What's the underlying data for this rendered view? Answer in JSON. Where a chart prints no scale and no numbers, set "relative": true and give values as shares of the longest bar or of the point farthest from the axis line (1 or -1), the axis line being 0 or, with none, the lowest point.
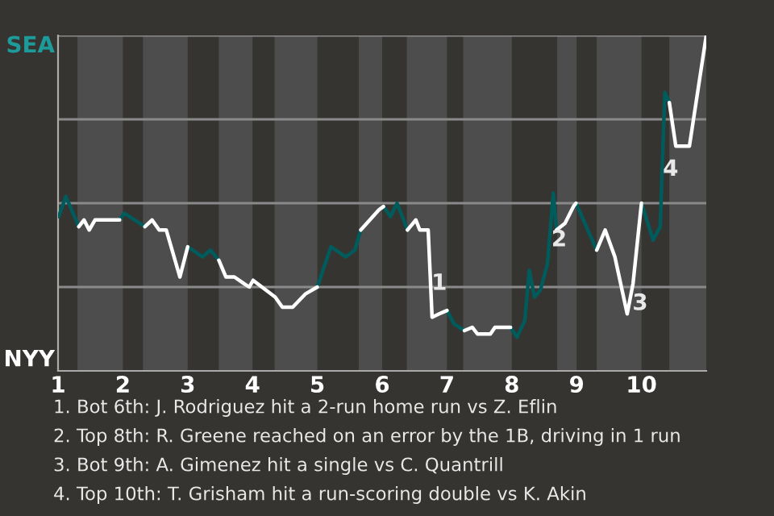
{
  "chart_data": {
    "type": "line",
    "relative": true,
    "x": [
      1.01,
      1.12,
      1.32,
      1.4,
      1.48,
      1.57,
      1.95,
      2.02,
      2.34,
      2.45,
      2.56,
      2.67,
      2.88,
      3.0,
      3.23,
      3.35,
      3.48,
      3.59,
      3.72,
      3.87,
      3.95,
      4.01,
      4.35,
      4.46,
      4.62,
      4.82,
      5.0,
      5.21,
      5.44,
      5.58,
      5.67,
      5.95,
      6.02,
      6.13,
      6.23,
      6.39,
      6.52,
      6.58,
      6.71,
      6.77,
      6.88,
      7.0,
      7.11,
      7.27,
      7.39,
      7.47,
      7.67,
      7.74,
      7.98,
      8.08,
      8.2,
      8.27,
      8.35,
      8.44,
      8.55,
      8.64,
      8.69,
      8.82,
      8.95,
      8.99,
      9.15,
      9.31,
      9.44,
      9.59,
      9.78,
      9.87,
      10.0,
      10.18,
      10.29,
      10.36,
      10.43,
      10.53,
      10.74,
      11.0
    ],
    "series": [
      {
        "color": "#005c5c",
        "values": [
          0.46,
          0.52,
          0.43,
          null,
          null,
          null,
          0.45,
          0.47,
          0.43,
          null,
          null,
          null,
          null,
          0.37,
          0.34,
          0.36,
          0.33,
          null,
          null,
          null,
          null,
          null,
          null,
          null,
          null,
          null,
          0.25,
          0.37,
          0.34,
          0.36,
          0.42,
          null,
          0.49,
          0.46,
          0.5,
          0.42,
          null,
          null,
          null,
          null,
          null,
          0.18,
          0.14,
          0.12,
          null,
          null,
          null,
          null,
          0.13,
          0.1,
          0.15,
          0.3,
          0.22,
          0.24,
          0.32,
          0.53,
          0.42,
          null,
          null,
          0.5,
          0.43,
          0.36,
          null,
          null,
          null,
          null,
          0.5,
          0.39,
          0.43,
          0.83,
          0.8,
          null,
          null,
          null
        ]
      },
      {
        "color": "#ffffff",
        "values": [
          null,
          null,
          0.43,
          0.45,
          0.42,
          0.45,
          0.45,
          null,
          0.43,
          0.45,
          0.42,
          0.42,
          0.28,
          0.37,
          null,
          null,
          0.33,
          0.28,
          0.28,
          0.26,
          0.25,
          0.27,
          0.22,
          0.19,
          0.19,
          0.23,
          0.25,
          null,
          null,
          null,
          0.42,
          0.48,
          0.49,
          null,
          null,
          0.42,
          0.45,
          0.42,
          0.42,
          0.16,
          0.17,
          0.18,
          null,
          0.12,
          0.13,
          0.11,
          0.11,
          0.13,
          0.13,
          null,
          null,
          null,
          null,
          null,
          null,
          null,
          0.42,
          0.44,
          0.49,
          0.5,
          null,
          0.36,
          0.42,
          0.34,
          0.17,
          0.26,
          0.5,
          null,
          null,
          null,
          0.8,
          0.67,
          0.67,
          1
        ]
      }
    ],
    "xlim": [
      1,
      11
    ],
    "xticks": [
      1,
      2,
      3,
      4,
      5,
      6,
      7,
      8,
      9,
      10
    ],
    "ref_lines": [
      {
        "axis": "y",
        "value": 0.25,
        "color": "#8a8a8a"
      },
      {
        "axis": "y",
        "value": 0.5,
        "color": "#8a8a8a"
      },
      {
        "axis": "y",
        "value": 0.75,
        "color": "#8a8a8a"
      },
      {
        "axis": "y",
        "value": 1,
        "color": "#8a8a8a"
      }
    ],
    "bands": [
      {
        "axis": "x",
        "from": 1.3,
        "to": 2.0,
        "color": "#4d4d4d"
      },
      {
        "axis": "x",
        "from": 2.31,
        "to": 3.0,
        "color": "#4d4d4d"
      },
      {
        "axis": "x",
        "from": 3.48,
        "to": 4.0,
        "color": "#4d4d4d"
      },
      {
        "axis": "x",
        "from": 4.34,
        "to": 5.0,
        "color": "#4d4d4d"
      },
      {
        "axis": "x",
        "from": 5.64,
        "to": 6.0,
        "color": "#4d4d4d"
      },
      {
        "axis": "x",
        "from": 6.38,
        "to": 7.0,
        "color": "#4d4d4d"
      },
      {
        "axis": "x",
        "from": 7.25,
        "to": 8.0,
        "color": "#4d4d4d"
      },
      {
        "axis": "x",
        "from": 8.7,
        "to": 9.0,
        "color": "#4d4d4d"
      },
      {
        "axis": "x",
        "from": 9.31,
        "to": 10.0,
        "color": "#4d4d4d"
      },
      {
        "axis": "x",
        "from": 10.43,
        "to": 11.0,
        "color": "#4d4d4d"
      }
    ],
    "annotations": [
      "SEA",
      "NYY",
      {
        "text": "1",
        "x": 6.88,
        "y": 0.26
      },
      {
        "text": "2",
        "x": 8.73,
        "y": 0.39
      },
      {
        "text": "3",
        "x": 9.98,
        "y": 0.2
      },
      {
        "text": "4",
        "x": 10.45,
        "y": 0.6
      },
      "1. Bot 6th: J. Rodriguez hit a 2-run home run vs Z. Eflin",
      "2. Top 8th: R. Greene reached on an error by the 1B, driving in 1 run",
      "3. Bot 9th: A. Gimenez hit a single vs C. Quantrill",
      "4. Top 10th: T. Grisham hit a run-scoring double vs K. Akin"
    ]
  }
}
